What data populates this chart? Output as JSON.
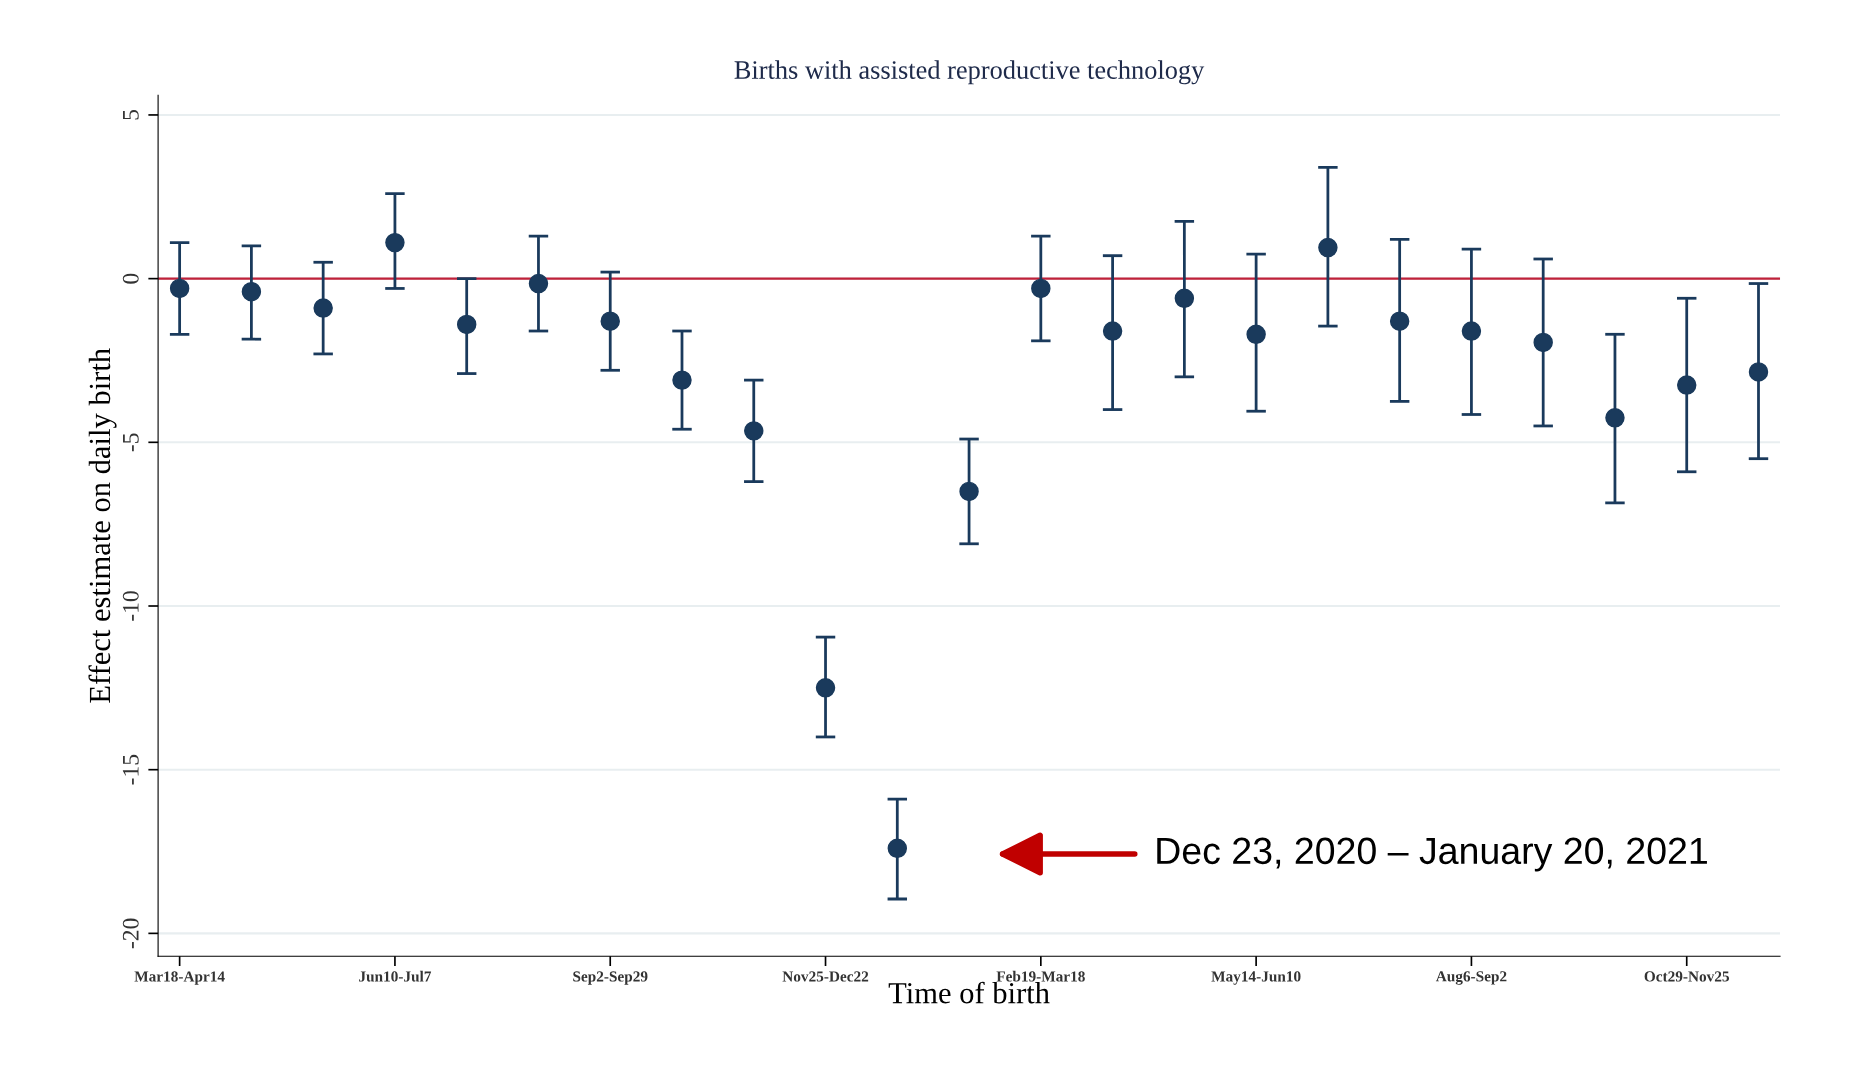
{
  "chart_data": {
    "type": "scatter",
    "title": "Births with assisted reproductive technology",
    "xlabel": "Time of birth",
    "ylabel": "Effect estimate on daily birth",
    "categories": [
      "Mar18-Apr14",
      null,
      null,
      "Jun10-Jul7",
      null,
      null,
      "Sep2-Sep29",
      null,
      null,
      "Nov25-Dec22",
      null,
      null,
      "Feb19-Mar18",
      null,
      null,
      "May14-Jun10",
      null,
      null,
      "Aug6-Sep2",
      null,
      null,
      "Oct29-Nov25",
      null
    ],
    "series": [
      {
        "color": "#1a3a5c",
        "values": [
          -0.3,
          -0.4,
          -0.9,
          1.1,
          -1.4,
          -0.15,
          -1.3,
          -3.1,
          -4.65,
          -12.5,
          -17.4,
          -6.5,
          -0.3,
          -1.6,
          -0.6,
          -1.7,
          0.95,
          -1.3,
          -1.6,
          -1.95,
          -4.25,
          -3.25,
          -2.85
        ],
        "errors": [
          [
            -1.7,
            1.1
          ],
          [
            -1.85,
            1.0
          ],
          [
            -2.3,
            0.5
          ],
          [
            -0.3,
            2.6
          ],
          [
            -2.9,
            0.0
          ],
          [
            -1.6,
            1.3
          ],
          [
            -2.8,
            0.2
          ],
          [
            -4.6,
            -1.6
          ],
          [
            -6.2,
            -3.1
          ],
          [
            -14.0,
            -10.95
          ],
          [
            -18.95,
            -15.9
          ],
          [
            -8.1,
            -4.9
          ],
          [
            -1.9,
            1.3
          ],
          [
            -4.0,
            0.7
          ],
          [
            -3.0,
            1.75
          ],
          [
            -4.05,
            0.75
          ],
          [
            -1.45,
            3.4
          ],
          [
            -3.75,
            1.2
          ],
          [
            -4.15,
            0.9
          ],
          [
            -4.5,
            0.6
          ],
          [
            -6.85,
            -1.7
          ],
          [
            -5.9,
            -0.6
          ],
          [
            -5.5,
            -0.15
          ]
        ]
      }
    ],
    "ylim": [
      -20.7,
      5.6
    ],
    "yticks": [
      -20,
      -15,
      -10,
      -5,
      0,
      5
    ],
    "grid": "y",
    "marker": "circle",
    "ref_lines": [
      {
        "axis": "y",
        "value": 0,
        "color": "#c0213a"
      }
    ],
    "annotations": [
      "Dec 23, 2020 – January 20, 2021"
    ]
  }
}
